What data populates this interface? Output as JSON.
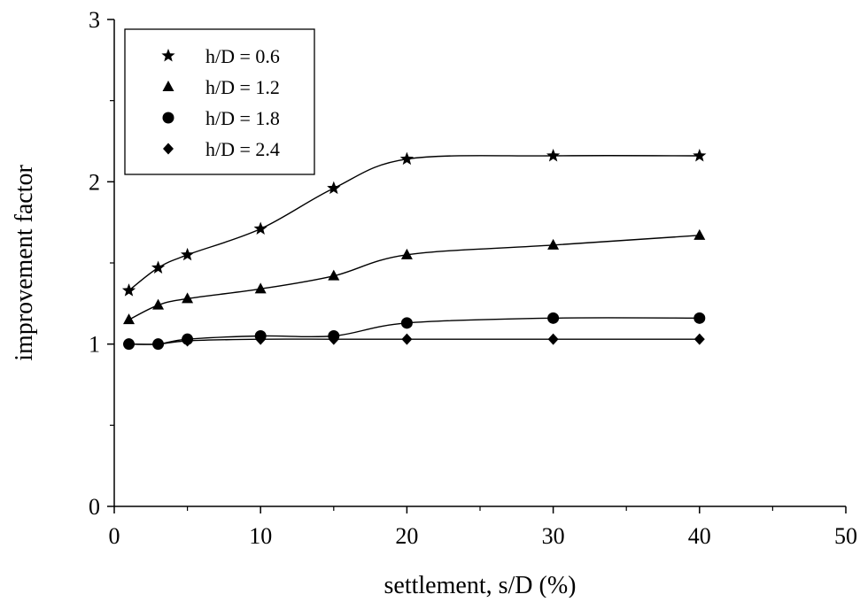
{
  "chart_data": {
    "type": "line",
    "xlabel": "settlement, s/D (%)",
    "ylabel": "improvement factor",
    "xlim": [
      0,
      50
    ],
    "ylim": [
      0,
      3
    ],
    "x_ticks": [
      0,
      10,
      20,
      30,
      40,
      50
    ],
    "y_ticks": [
      0,
      1,
      2,
      3
    ],
    "grid": false,
    "legend_position": "top-left",
    "x": [
      1,
      3,
      5,
      10,
      15,
      20,
      30,
      40
    ],
    "series": [
      {
        "name": "h/D = 0.6",
        "marker": "star",
        "values": [
          1.33,
          1.47,
          1.55,
          1.71,
          1.96,
          2.14,
          2.16,
          2.16
        ]
      },
      {
        "name": "h/D = 1.2",
        "marker": "triangle",
        "values": [
          1.15,
          1.24,
          1.28,
          1.34,
          1.42,
          1.55,
          1.61,
          1.67
        ]
      },
      {
        "name": "h/D = 1.8",
        "marker": "circle",
        "values": [
          1.0,
          1.0,
          1.03,
          1.05,
          1.05,
          1.13,
          1.16,
          1.16
        ]
      },
      {
        "name": "h/D = 2.4",
        "marker": "diamond",
        "values": [
          1.0,
          1.0,
          1.02,
          1.03,
          1.03,
          1.03,
          1.03,
          1.03
        ]
      }
    ],
    "colors": {
      "line": "#000000",
      "marker": "#000000",
      "background": "#ffffff"
    }
  }
}
